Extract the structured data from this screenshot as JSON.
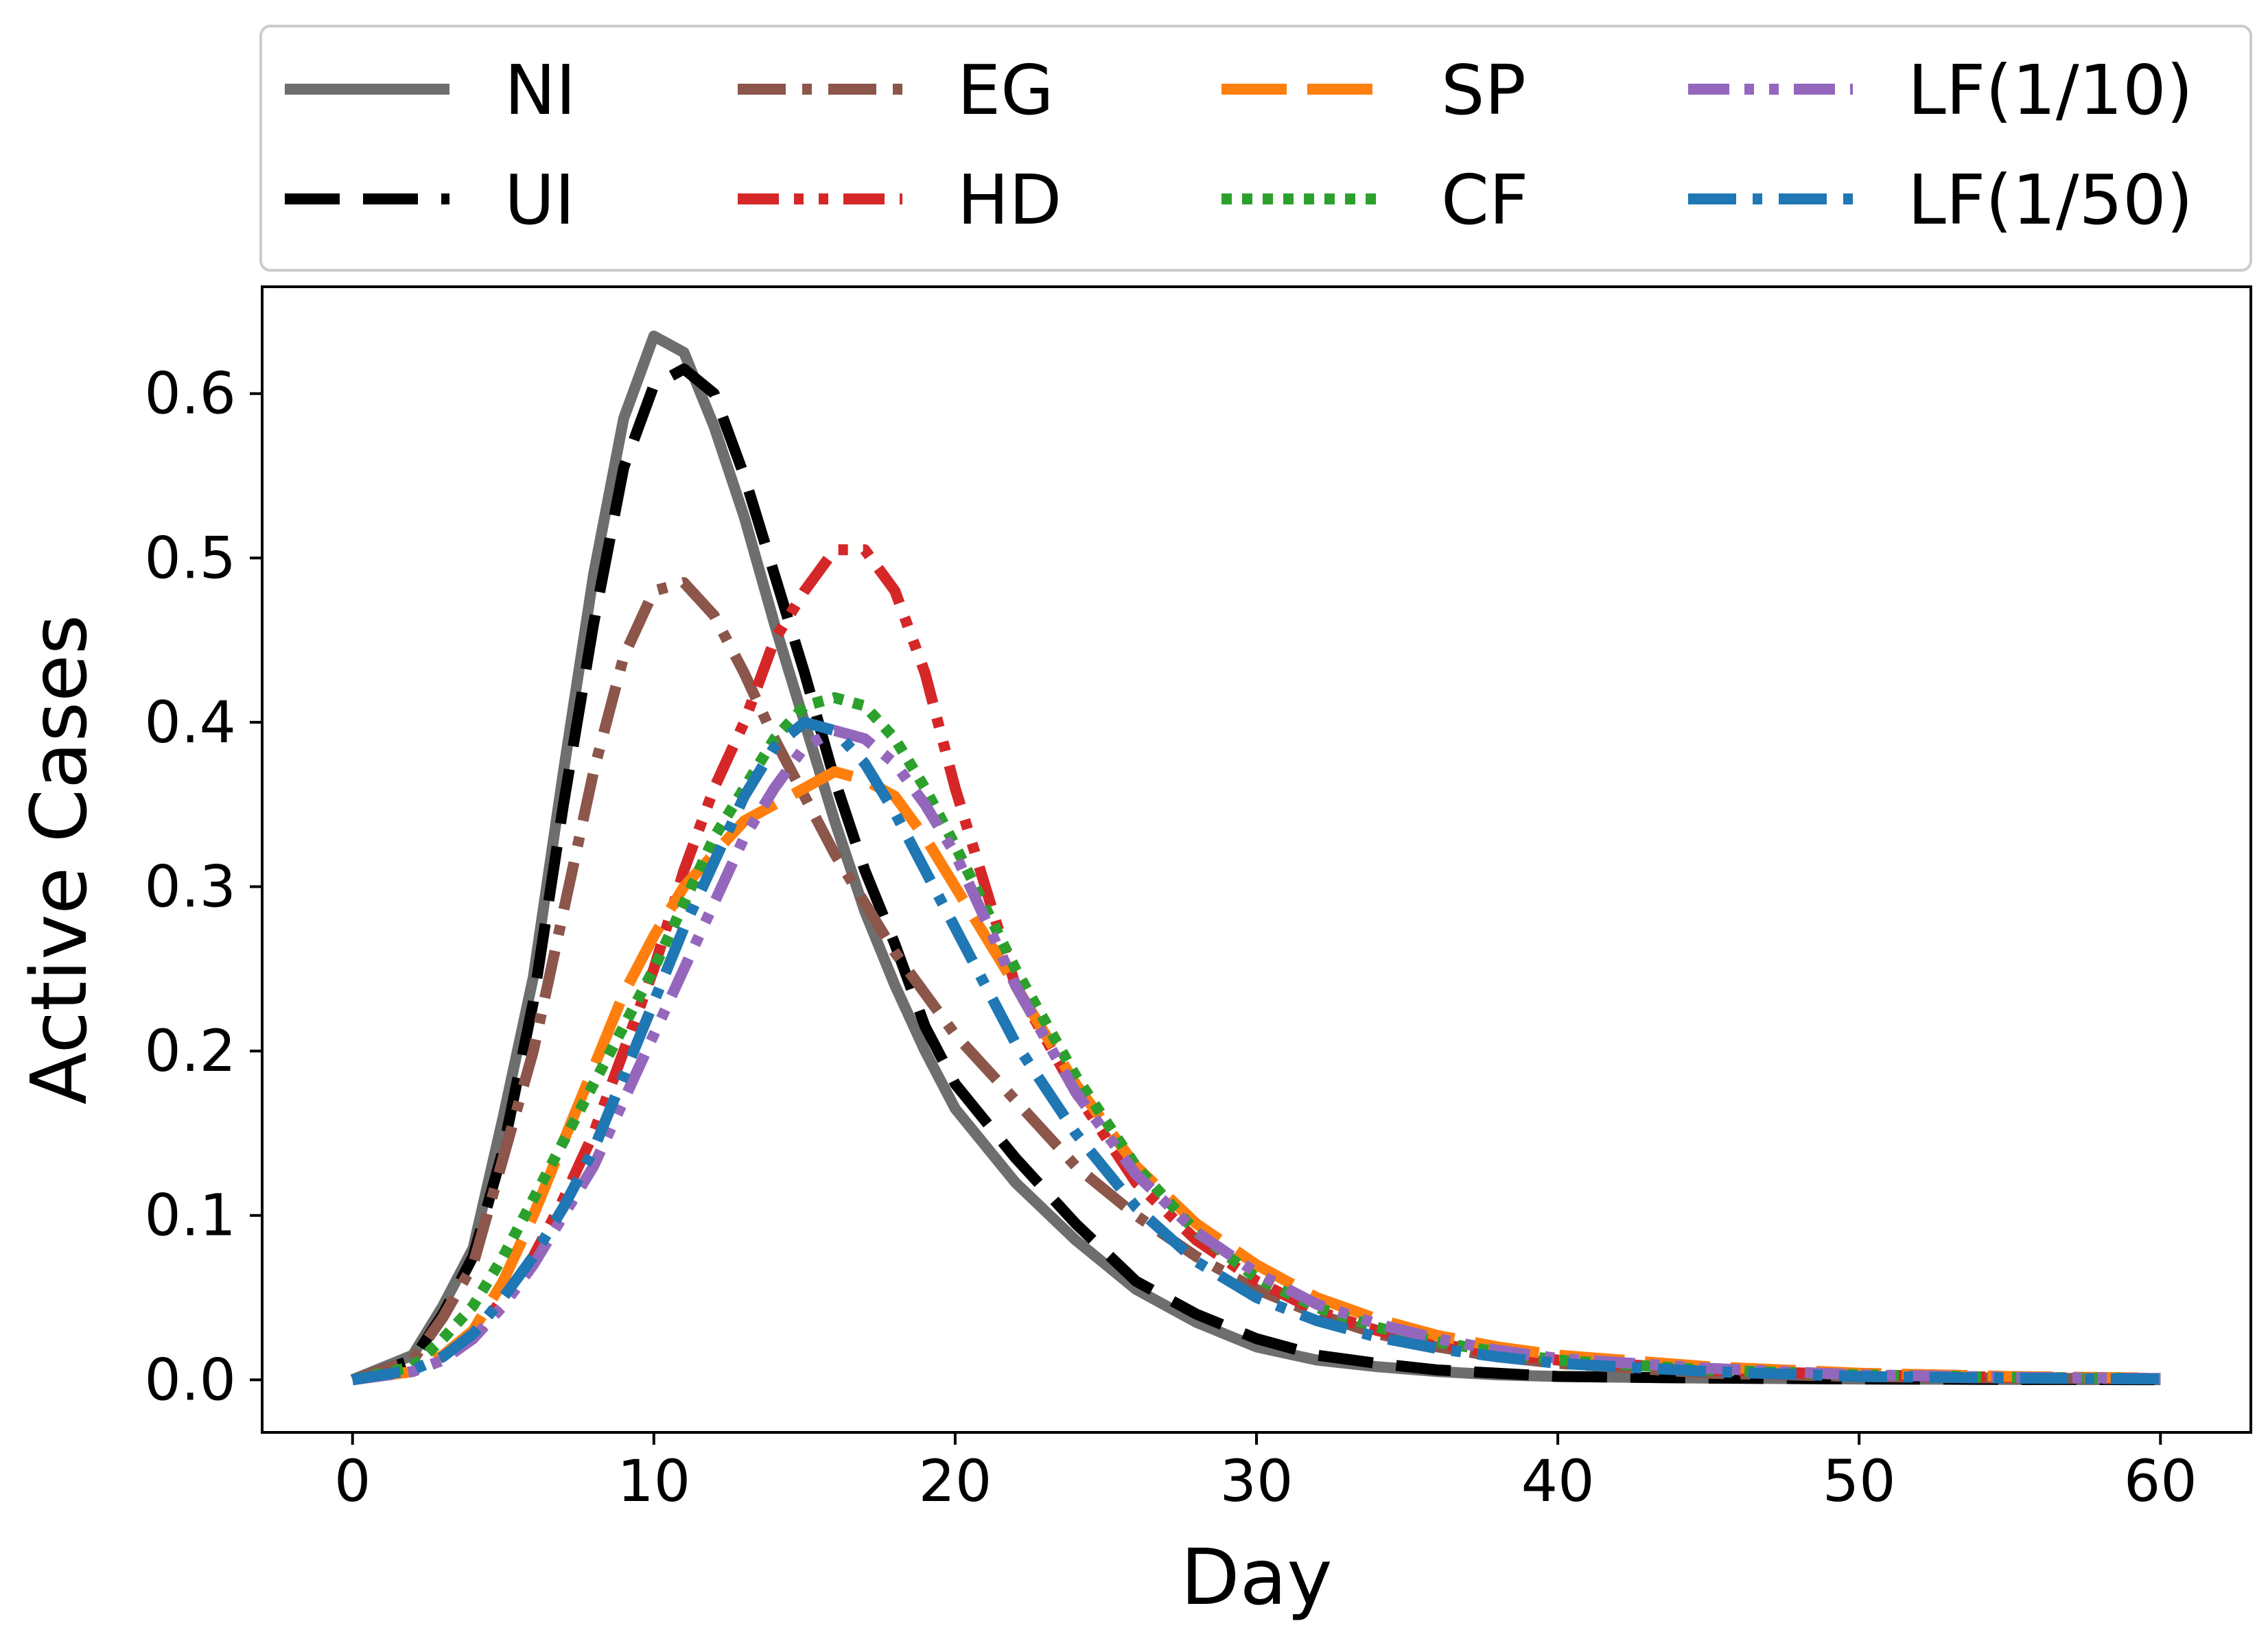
{
  "chart_data": {
    "type": "line",
    "title": "",
    "xlabel": "Day",
    "ylabel": "Active Cases",
    "xlim": [
      -3,
      63
    ],
    "ylim": [
      -0.032,
      0.665
    ],
    "xticks": [
      0,
      10,
      20,
      30,
      40,
      50,
      60
    ],
    "yticks": [
      0.0,
      0.1,
      0.2,
      0.3,
      0.4,
      0.5,
      0.6
    ],
    "xtick_labels": [
      "0",
      "10",
      "20",
      "30",
      "40",
      "50",
      "60"
    ],
    "ytick_labels": [
      "0.0",
      "0.1",
      "0.2",
      "0.3",
      "0.4",
      "0.5",
      "0.6"
    ],
    "grid": false,
    "legend": {
      "placement": "top (outside plot)",
      "columns": 4
    },
    "series": [
      {
        "name": "NI",
        "color": "#6e6e6e",
        "linestyle": "solid",
        "x": [
          0,
          2,
          3,
          4,
          5,
          6,
          7,
          8,
          9,
          10,
          11,
          12,
          13,
          14,
          15,
          16,
          17,
          18,
          19,
          20,
          22,
          24,
          25,
          26,
          28,
          30,
          32,
          34,
          36,
          38,
          40,
          45,
          50,
          55,
          60
        ],
        "y": [
          0.0,
          0.015,
          0.045,
          0.08,
          0.16,
          0.245,
          0.37,
          0.49,
          0.585,
          0.635,
          0.625,
          0.58,
          0.525,
          0.46,
          0.4,
          0.34,
          0.285,
          0.24,
          0.2,
          0.165,
          0.12,
          0.085,
          0.07,
          0.055,
          0.035,
          0.02,
          0.012,
          0.008,
          0.005,
          0.003,
          0.002,
          0.001,
          0.0005,
          0.0002,
          0.0001
        ]
      },
      {
        "name": "UI",
        "color": "#000000",
        "linestyle": "dashed",
        "x": [
          0,
          2,
          3,
          4,
          5,
          6,
          7,
          8,
          9,
          10,
          11,
          12,
          13,
          14,
          15,
          16,
          17,
          18,
          19,
          20,
          22,
          24,
          26,
          28,
          30,
          32,
          34,
          36,
          38,
          40,
          45,
          50,
          55,
          60
        ],
        "y": [
          0.0,
          0.012,
          0.04,
          0.075,
          0.14,
          0.23,
          0.35,
          0.46,
          0.555,
          0.605,
          0.615,
          0.6,
          0.55,
          0.49,
          0.43,
          0.365,
          0.31,
          0.265,
          0.215,
          0.18,
          0.135,
          0.095,
          0.06,
          0.04,
          0.025,
          0.015,
          0.01,
          0.006,
          0.004,
          0.002,
          0.001,
          0.0005,
          0.0002,
          0.0001
        ]
      },
      {
        "name": "EG",
        "color": "#8c564b",
        "linestyle": "dashdot",
        "x": [
          0,
          2,
          3,
          4,
          5,
          6,
          7,
          8,
          9,
          10,
          11,
          12,
          13,
          14,
          15,
          16,
          17,
          18,
          19,
          20,
          22,
          24,
          26,
          28,
          30,
          32,
          34,
          36,
          38,
          40,
          45,
          50,
          55,
          60
        ],
        "y": [
          0.0,
          0.012,
          0.038,
          0.07,
          0.135,
          0.2,
          0.285,
          0.37,
          0.44,
          0.48,
          0.485,
          0.465,
          0.43,
          0.39,
          0.355,
          0.32,
          0.29,
          0.26,
          0.235,
          0.21,
          0.17,
          0.13,
          0.1,
          0.075,
          0.055,
          0.04,
          0.028,
          0.02,
          0.014,
          0.01,
          0.004,
          0.002,
          0.001,
          0.0005
        ]
      },
      {
        "name": "HD",
        "color": "#d62728",
        "linestyle": "dashdotdot",
        "x": [
          0,
          2,
          3,
          4,
          5,
          6,
          7,
          8,
          9,
          10,
          11,
          12,
          13,
          14,
          15,
          16,
          17,
          18,
          19,
          20,
          22,
          24,
          26,
          28,
          30,
          32,
          34,
          36,
          38,
          40,
          45,
          50,
          55,
          60
        ],
        "y": [
          0.0,
          0.005,
          0.012,
          0.025,
          0.05,
          0.075,
          0.11,
          0.15,
          0.2,
          0.25,
          0.31,
          0.36,
          0.4,
          0.45,
          0.48,
          0.505,
          0.505,
          0.48,
          0.43,
          0.36,
          0.24,
          0.175,
          0.12,
          0.085,
          0.06,
          0.042,
          0.03,
          0.022,
          0.016,
          0.012,
          0.006,
          0.003,
          0.0015,
          0.0008
        ]
      },
      {
        "name": "SP",
        "color": "#ff7f0e",
        "linestyle": "longdash",
        "x": [
          0,
          2,
          3,
          4,
          5,
          6,
          7,
          8,
          9,
          10,
          11,
          12,
          13,
          14,
          15,
          16,
          17,
          18,
          19,
          20,
          22,
          24,
          26,
          28,
          30,
          32,
          34,
          36,
          38,
          40,
          45,
          50,
          55,
          60
        ],
        "y": [
          0.0,
          0.005,
          0.015,
          0.03,
          0.06,
          0.1,
          0.145,
          0.19,
          0.235,
          0.27,
          0.3,
          0.32,
          0.34,
          0.35,
          0.36,
          0.37,
          0.365,
          0.355,
          0.33,
          0.3,
          0.24,
          0.18,
          0.13,
          0.095,
          0.07,
          0.05,
          0.037,
          0.027,
          0.02,
          0.015,
          0.008,
          0.004,
          0.002,
          0.001
        ]
      },
      {
        "name": "CF",
        "color": "#2ca02c",
        "linestyle": "dotted",
        "x": [
          0,
          2,
          3,
          4,
          5,
          6,
          7,
          8,
          9,
          10,
          11,
          12,
          13,
          14,
          15,
          16,
          17,
          18,
          19,
          20,
          22,
          24,
          26,
          28,
          30,
          32,
          34,
          36,
          38,
          40,
          45,
          50,
          55,
          60
        ],
        "y": [
          0.0,
          0.008,
          0.025,
          0.045,
          0.075,
          0.11,
          0.145,
          0.18,
          0.215,
          0.25,
          0.29,
          0.33,
          0.36,
          0.39,
          0.41,
          0.415,
          0.41,
          0.39,
          0.36,
          0.325,
          0.25,
          0.185,
          0.13,
          0.09,
          0.062,
          0.044,
          0.032,
          0.023,
          0.017,
          0.012,
          0.006,
          0.003,
          0.0015,
          0.0008
        ]
      },
      {
        "name": "LF(1/10)",
        "color": "#9467bd",
        "linestyle": "dashdotdot",
        "x": [
          0,
          2,
          3,
          4,
          5,
          6,
          7,
          8,
          9,
          10,
          11,
          12,
          13,
          14,
          15,
          16,
          17,
          18,
          19,
          20,
          22,
          24,
          26,
          28,
          30,
          32,
          34,
          36,
          38,
          40,
          45,
          50,
          55,
          60
        ],
        "y": [
          0.0,
          0.005,
          0.012,
          0.025,
          0.045,
          0.07,
          0.1,
          0.13,
          0.17,
          0.21,
          0.25,
          0.29,
          0.33,
          0.36,
          0.385,
          0.395,
          0.39,
          0.375,
          0.35,
          0.32,
          0.24,
          0.175,
          0.125,
          0.09,
          0.065,
          0.046,
          0.034,
          0.025,
          0.018,
          0.013,
          0.007,
          0.003,
          0.0015,
          0.0008
        ]
      },
      {
        "name": "LF(1/50)",
        "color": "#1f77b4",
        "linestyle": "dashdot",
        "x": [
          0,
          2,
          3,
          4,
          5,
          6,
          7,
          8,
          9,
          10,
          11,
          12,
          13,
          14,
          15,
          16,
          17,
          18,
          19,
          20,
          22,
          24,
          26,
          28,
          30,
          32,
          34,
          36,
          38,
          40,
          45,
          50,
          55,
          60
        ],
        "y": [
          0.0,
          0.006,
          0.014,
          0.028,
          0.05,
          0.075,
          0.105,
          0.14,
          0.185,
          0.23,
          0.275,
          0.315,
          0.355,
          0.385,
          0.4,
          0.395,
          0.375,
          0.345,
          0.31,
          0.275,
          0.205,
          0.15,
          0.105,
          0.072,
          0.05,
          0.036,
          0.026,
          0.019,
          0.014,
          0.01,
          0.005,
          0.002,
          0.001,
          0.0005
        ]
      }
    ]
  }
}
